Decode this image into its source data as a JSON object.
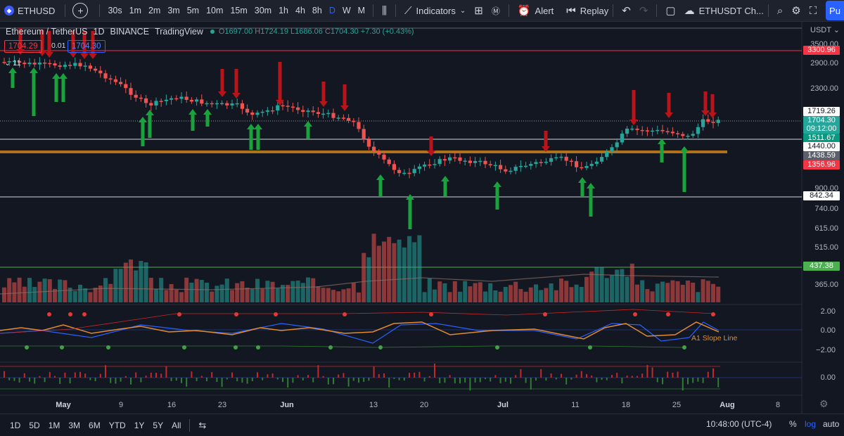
{
  "toolbar": {
    "symbol": "ETHUSD",
    "intervals": [
      "30s",
      "1m",
      "2m",
      "3m",
      "5m",
      "10m",
      "15m",
      "30m",
      "1h",
      "4h",
      "8h",
      "D",
      "W",
      "M"
    ],
    "active_interval": "D",
    "indicators_label": "Indicators",
    "alert_label": "Alert",
    "replay_label": "Replay",
    "layout_name": "ETHUSDT Ch...",
    "publish_label": "Pu"
  },
  "legend": {
    "title": "Ethereum / TetherUS",
    "interval": "1D",
    "exchange": "BINANCE",
    "source": "TradingView",
    "open_key": "O",
    "open": "1697.00",
    "high_key": "H",
    "high": "1724.19",
    "low_key": "L",
    "low": "1686.06",
    "close_key": "C",
    "close": "1704.30",
    "change": "+7.30 (+0.43%)",
    "sell_price": "1704.29",
    "spread": "0.01",
    "buy_price": "1704.30",
    "indicator_count": "11"
  },
  "price_axis": {
    "currency": "USDT",
    "labels": [
      "3500.00",
      "2900.00",
      "2300.00",
      "900.00",
      "740.00",
      "615.00",
      "515.00",
      "365.00"
    ],
    "badges": [
      {
        "text": "3300.96",
        "bg": "#f23645",
        "fg": "#ffffff"
      },
      {
        "text": "1719.26",
        "bg": "#ffffff",
        "fg": "#131722"
      },
      {
        "text": "1704.30",
        "bg": "#26a69a",
        "fg": "#ffffff"
      },
      {
        "text": "09:12:00",
        "bg": "#26a69a",
        "fg": "#ffffff"
      },
      {
        "text": "1511.67",
        "bg": "#089981",
        "fg": "#ffffff"
      },
      {
        "text": "1440.00",
        "bg": "#ffffff",
        "fg": "#131722"
      },
      {
        "text": "1438.59",
        "bg": "#5d606b",
        "fg": "#ffffff"
      },
      {
        "text": "1356.96",
        "bg": "#f23645",
        "fg": "#ffffff"
      },
      {
        "text": "842.34",
        "bg": "#ffffff",
        "fg": "#131722"
      },
      {
        "text": "437.38",
        "bg": "#4caf50",
        "fg": "#ffffff"
      }
    ]
  },
  "oscillator": {
    "name": "A1 Slope Line",
    "y_labels": [
      "2.00",
      "0.00",
      "−2.00"
    ]
  },
  "histogram": {
    "y_labels": [
      "0.00"
    ]
  },
  "time_axis": {
    "labels": [
      "May",
      "9",
      "16",
      "23",
      "Jun",
      "13",
      "20",
      "Jul",
      "11",
      "18",
      "25",
      "Aug",
      "8"
    ]
  },
  "bottom": {
    "ranges": [
      "1D",
      "5D",
      "1M",
      "3M",
      "6M",
      "YTD",
      "1Y",
      "5Y",
      "All"
    ],
    "clock": "10:48:00 (UTC-4)",
    "percent_label": "%",
    "log_label": "log",
    "auto_label": "auto"
  },
  "colors": {
    "up": "#26a69a",
    "down": "#ef5350",
    "buy_arrow": "#1aa33c",
    "sell_arrow": "#b8141a",
    "oscillator_line": "#e38b2d",
    "accent": "#2962ff"
  }
}
